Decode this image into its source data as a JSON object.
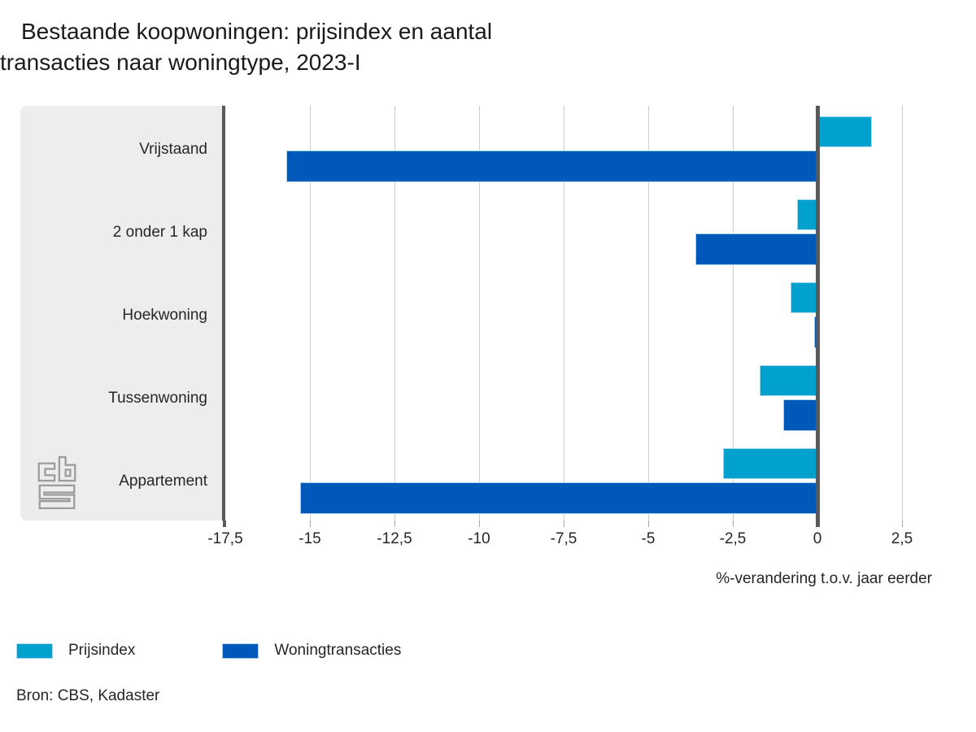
{
  "title": {
    "line1": "Bestaande koopwoningen: prijsindex en aantal",
    "line2": "transacties naar woningtype, 2023-I"
  },
  "chart_data": {
    "type": "bar",
    "orientation": "horizontal",
    "categories": [
      "Vrijstaand",
      "2 onder 1 kap",
      "Hoekwoning",
      "Tussenwoning",
      "Appartement"
    ],
    "series": [
      {
        "name": "Prijsindex",
        "color": "#00a1cd",
        "values": [
          1.6,
          -0.6,
          -0.8,
          -1.7,
          -2.8
        ]
      },
      {
        "name": "Woningtransacties",
        "color": "#0058b8",
        "values": [
          -15.7,
          -3.6,
          -0.1,
          -1.0,
          -15.3
        ]
      }
    ],
    "xlabel": "%-verandering t.o.v. jaar eerder",
    "xlim": [
      -17.5,
      2.5
    ],
    "xticks": [
      -17.5,
      -15,
      -12.5,
      -10,
      -7.5,
      -5,
      -2.5,
      0,
      2.5
    ],
    "xtick_labels": [
      "-17,5",
      "-15",
      "-12,5",
      "-10",
      "-7,5",
      "-5",
      "-2,5",
      "0",
      "2,5"
    ],
    "grid": true,
    "legend_position": "bottom-left",
    "unit": "%-verandering t.o.v. jaar eerder"
  },
  "source": "Bron: CBS, Kadaster",
  "branding": {
    "logo": "cbs-logo"
  },
  "colors": {
    "prijsindex": "#00a1cd",
    "woningtransacties": "#0058b8",
    "zero_line": "#58595b",
    "panel_background": "#ededed",
    "gridline": "#cccccc",
    "logo_gray": "#9d9d9c"
  }
}
